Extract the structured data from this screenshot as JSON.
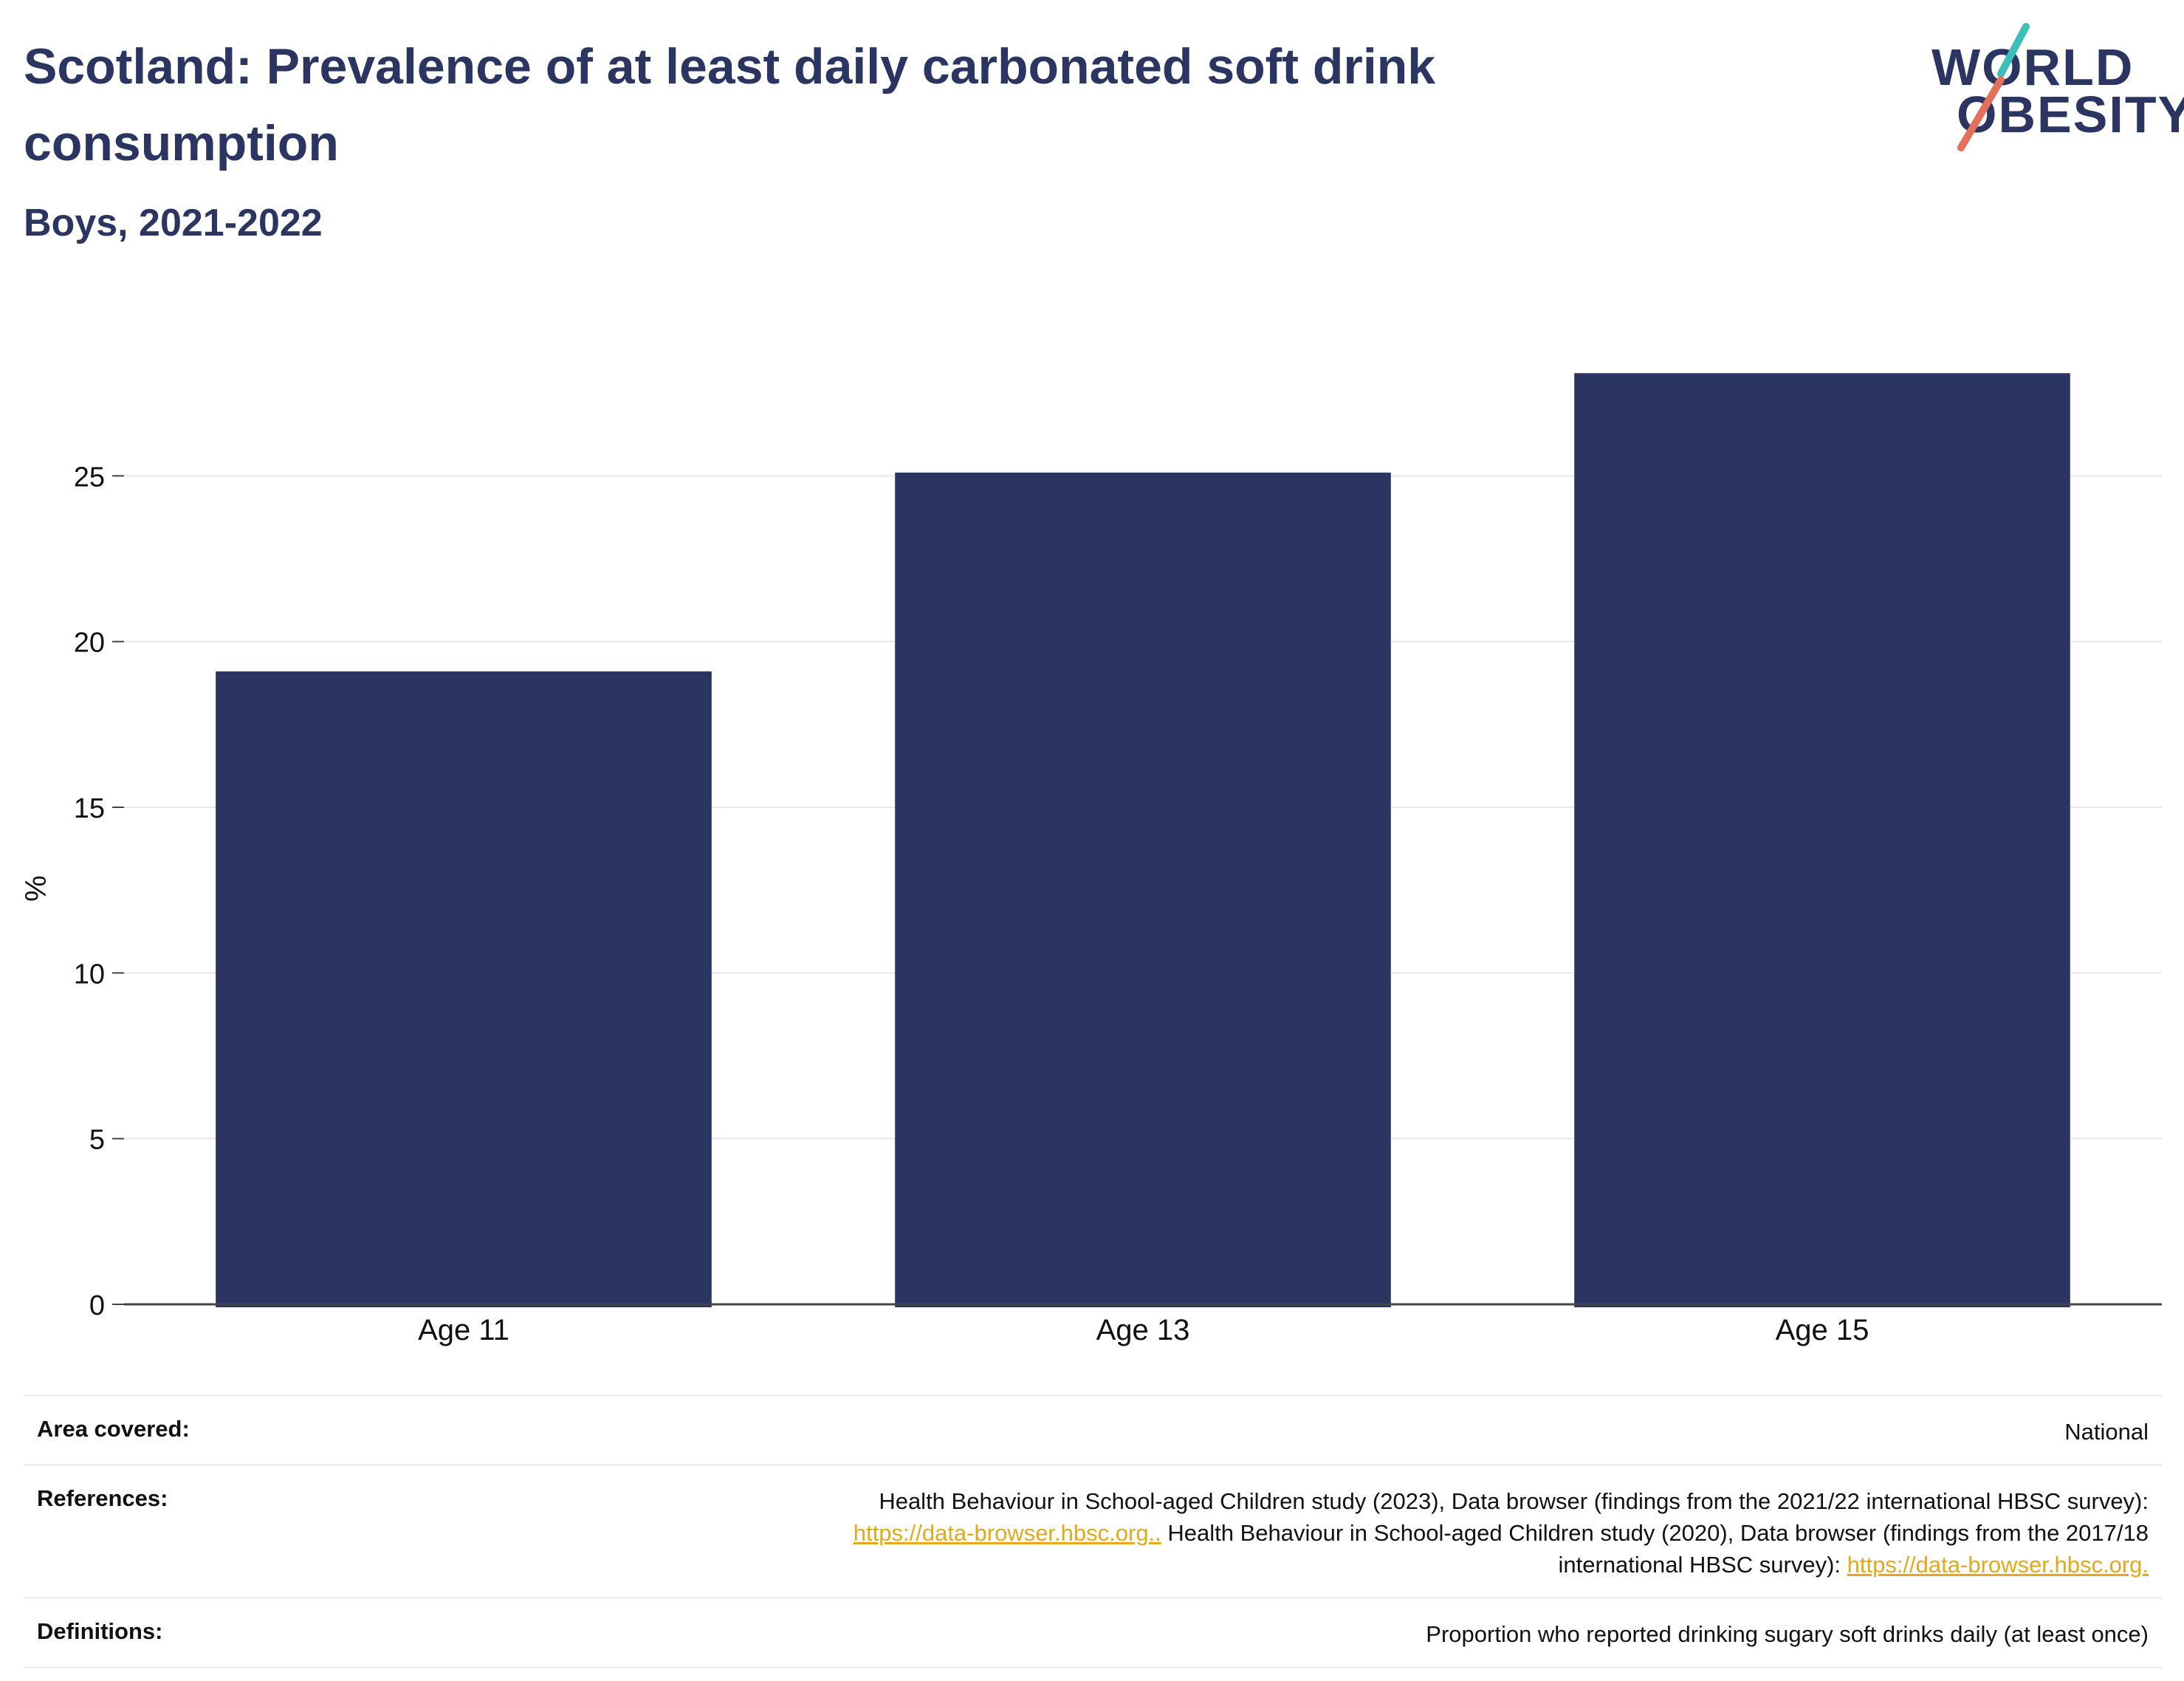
{
  "header": {
    "title": "Scotland: Prevalence of at least daily carbonated soft drink consumption",
    "subtitle": "Boys, 2021-2022"
  },
  "logo": {
    "line1": "WORLD",
    "line2": "OBESITY",
    "text_color": "#2b3562",
    "slash_teal": "#3bbfb8",
    "slash_coral": "#e46f5a"
  },
  "chart_data": {
    "type": "bar",
    "categories": [
      "Age 11",
      "Age 13",
      "Age 15"
    ],
    "values": [
      19.1,
      25.1,
      28.1
    ],
    "ylabel": "%",
    "ylim": [
      0,
      30
    ],
    "yticks": [
      0,
      5,
      10,
      15,
      20,
      25
    ],
    "grid": true,
    "bar_color": "#2b3562"
  },
  "info": {
    "area": {
      "label": "Area covered:",
      "value": "National"
    },
    "references": {
      "label": "References:",
      "line1": "Health Behaviour in School-aged Children study (2023), Data browser (findings from the 2021/22 international HBSC survey):",
      "link1": "https://data-browser.hbsc.org..",
      "line2": " Health Behaviour in School-aged Children study (2020), Data browser (findings from the 2017/18",
      "line3": "international HBSC survey): ",
      "link2": "https://data-browser.hbsc.org."
    },
    "definitions": {
      "label": "Definitions:",
      "value": "Proportion who reported drinking sugary soft drinks daily (at least once)"
    }
  }
}
